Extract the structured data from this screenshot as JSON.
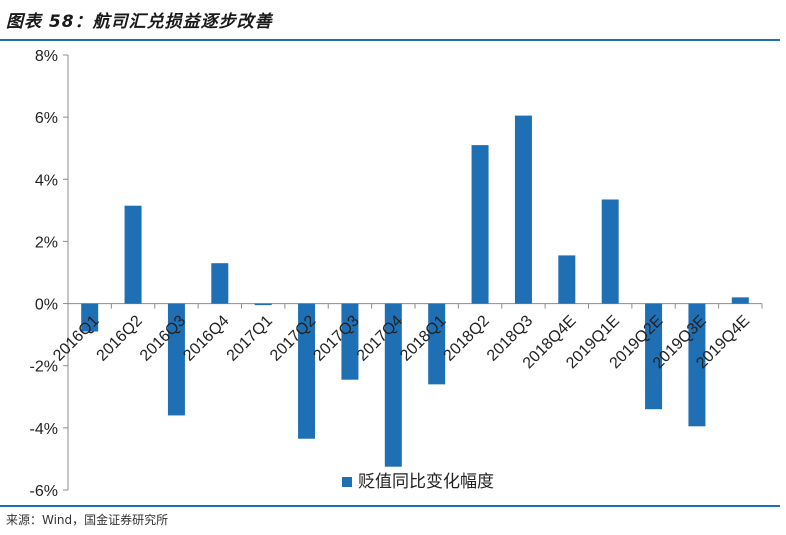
{
  "figure": {
    "title": "图表 58：航司汇兑损益逐步改善",
    "source": "来源：Wind，国金证券研究所"
  },
  "chart_data": {
    "type": "bar",
    "categories": [
      "2016Q1",
      "2016Q2",
      "2016Q3",
      "2016Q4",
      "2017Q1",
      "2017Q2",
      "2017Q3",
      "2017Q4",
      "2018Q1",
      "2018Q2",
      "2018Q3",
      "2018Q4E",
      "2019Q1E",
      "2019Q2E",
      "2019Q3E",
      "2019Q4E"
    ],
    "series": [
      {
        "name": "贬值同比变化幅度",
        "values": [
          -0.9,
          3.15,
          -3.6,
          1.3,
          -0.05,
          -4.35,
          -2.45,
          -5.25,
          -2.6,
          5.1,
          6.05,
          1.55,
          3.35,
          -3.4,
          -3.95,
          0.2
        ],
        "color": "#1f6fb4"
      }
    ],
    "yticks": [
      "8%",
      "6%",
      "4%",
      "2%",
      "0%",
      "-2%",
      "-4%",
      "-6%"
    ],
    "ylim": [
      -6,
      8
    ],
    "y_unit": "%",
    "legend_position": "bottom",
    "grid": false
  }
}
